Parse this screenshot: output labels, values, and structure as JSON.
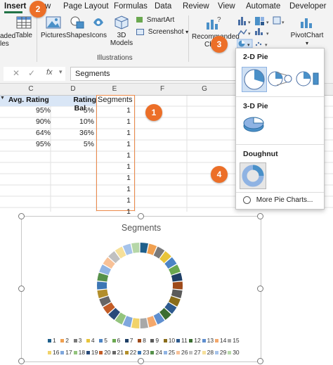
{
  "ribbon": {
    "tabs": [
      {
        "label": "Insert",
        "active": true
      },
      {
        "label": "w",
        "active": false
      },
      {
        "label": "Page Layout",
        "active": false
      },
      {
        "label": "Formulas",
        "active": false
      },
      {
        "label": "Data",
        "active": false
      },
      {
        "label": "Review",
        "active": false
      },
      {
        "label": "View",
        "active": false
      },
      {
        "label": "Automate",
        "active": false
      },
      {
        "label": "Developer",
        "active": false
      }
    ],
    "buttons": {
      "recommended_tables": "aded",
      "recommended_tables_2": "les",
      "table": "Table",
      "pictures": "Pictures",
      "shapes": "Shapes",
      "icons": "Icons",
      "models_3d": "3D",
      "models_3d_2": "Models",
      "smartart": "SmartArt",
      "screenshot": "Screenshot",
      "recommended_charts": "Recommended",
      "recommended_charts_2": "Ch",
      "pivotchart": "PivotChart"
    },
    "group_illustrations": "Illustrations"
  },
  "formula_bar": {
    "cancel": "✕",
    "enter": "✓",
    "fx": "fx",
    "content": "Segments"
  },
  "grid": {
    "columns": [
      "C",
      "D",
      "E",
      "F",
      "G"
    ],
    "headers": [
      "Avg. Rating",
      "Rating Bal",
      "Segments"
    ],
    "rows": [
      {
        "c": "95%",
        "d": "5%",
        "e": "1"
      },
      {
        "c": "90%",
        "d": "10%",
        "e": "1"
      },
      {
        "c": "64%",
        "d": "36%",
        "e": "1"
      },
      {
        "c": "95%",
        "d": "5%",
        "e": "1"
      },
      {
        "c": "",
        "d": "",
        "e": "1"
      },
      {
        "c": "",
        "d": "",
        "e": "1"
      },
      {
        "c": "",
        "d": "",
        "e": "1"
      },
      {
        "c": "",
        "d": "",
        "e": "1"
      },
      {
        "c": "",
        "d": "",
        "e": "1"
      },
      {
        "c": "",
        "d": "",
        "e": "1"
      },
      {
        "c": "",
        "d": "",
        "e": "1"
      }
    ]
  },
  "pie_menu": {
    "section_2d": "2-D Pie",
    "section_3d": "3-D Pie",
    "section_doughnut": "Doughnut",
    "more": "More Pie Charts..."
  },
  "callouts": [
    "1",
    "2",
    "3",
    "4"
  ],
  "colors": {
    "accent_orange": "#ec6f28",
    "excel_green": "#217346",
    "header_blue": "#d9e6f6",
    "selection_border": "#ec8a4a"
  },
  "chart_data": {
    "type": "doughnut",
    "title": "Segments",
    "categories": [
      "1",
      "2",
      "3",
      "4",
      "5",
      "6",
      "7",
      "8",
      "9",
      "10",
      "11",
      "12",
      "13",
      "14",
      "15",
      "16",
      "17",
      "18",
      "19",
      "20",
      "21",
      "22",
      "23",
      "24",
      "25",
      "26",
      "27",
      "28",
      "29",
      "30"
    ],
    "values": [
      1,
      1,
      1,
      1,
      1,
      1,
      1,
      1,
      1,
      1,
      1,
      1,
      1,
      1,
      1,
      1,
      1,
      1,
      1,
      1,
      1,
      1,
      1,
      1,
      1,
      1,
      1,
      1,
      1,
      1
    ],
    "colors": [
      "#1f5f8b",
      "#f0a050",
      "#7a7a7a",
      "#e8c43a",
      "#4c84c4",
      "#6aa84f",
      "#1e3f66",
      "#9e4a1a",
      "#5a5a5a",
      "#8a6d1a",
      "#2d5a8e",
      "#3b6e30",
      "#5f8fcf",
      "#f4a86c",
      "#a8a8a8",
      "#f1d36a",
      "#7fa7dd",
      "#93c47d",
      "#284a7a",
      "#c25c26",
      "#666666",
      "#b28e2a",
      "#3c76b4",
      "#56914a",
      "#8fb3e3",
      "#f8c197",
      "#c0c0c0",
      "#f6e09a",
      "#a6c3ea",
      "#b6d7a8"
    ],
    "legend_position": "bottom"
  }
}
